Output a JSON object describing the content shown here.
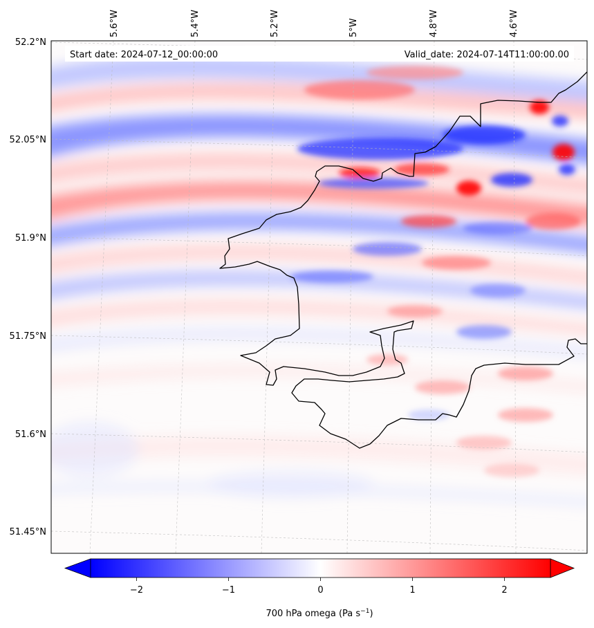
{
  "header": {
    "start_date": "Start date: 2024-07-12_00:00:00",
    "valid_date": "Valid_date: 2024-07-14T11:00:00.00"
  },
  "longitude_labels": [
    "5.6°W",
    "5.4°W",
    "5.2°W",
    "5°W",
    "4.8°W",
    "4.6°W"
  ],
  "latitude_labels": [
    "52.2°N",
    "52.05°N",
    "51.9°N",
    "51.75°N",
    "51.6°N",
    "51.45°N"
  ],
  "colorbar": {
    "label": "700 hPa omega (Pa s",
    "label_sup": "−1",
    "label_end": ")",
    "ticks": [
      "−2",
      "−1",
      "0",
      "1",
      "2"
    ],
    "tick_values": [
      -2,
      -1,
      0,
      1,
      2
    ],
    "range": [
      -2.5,
      2.5
    ],
    "extend": "both",
    "colormap": "bwr",
    "min_color": "#0000ff",
    "mid_color": "#ffffff",
    "max_color": "#ff0000"
  },
  "map": {
    "field": "700 hPa omega",
    "coastline_color": "#000000",
    "gridline_color": "#bbbbbb"
  }
}
